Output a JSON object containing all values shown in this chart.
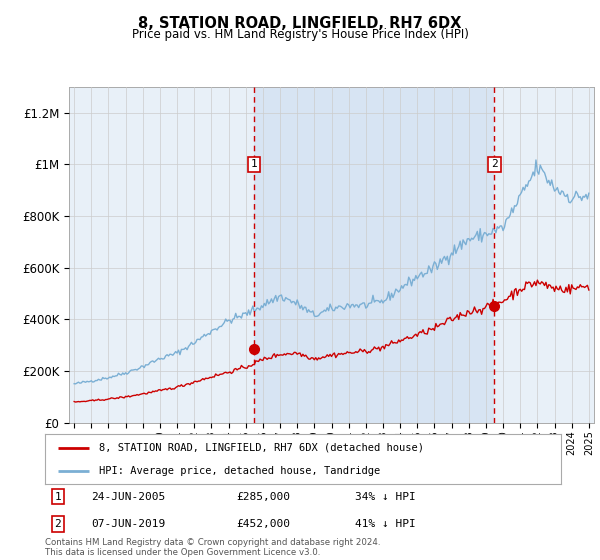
{
  "title": "8, STATION ROAD, LINGFIELD, RH7 6DX",
  "subtitle": "Price paid vs. HM Land Registry's House Price Index (HPI)",
  "footer": "Contains HM Land Registry data © Crown copyright and database right 2024.\nThis data is licensed under the Open Government Licence v3.0.",
  "legend_line1": "8, STATION ROAD, LINGFIELD, RH7 6DX (detached house)",
  "legend_line2": "HPI: Average price, detached house, Tandridge",
  "marker1_date": "24-JUN-2005",
  "marker1_price": "£285,000",
  "marker1_hpi": "34% ↓ HPI",
  "marker1_year": 2005.5,
  "marker1_price_val": 285000,
  "marker2_date": "07-JUN-2019",
  "marker2_price": "£452,000",
  "marker2_hpi": "41% ↓ HPI",
  "marker2_year": 2019.5,
  "marker2_price_val": 452000,
  "hpi_color": "#7bafd4",
  "price_color": "#cc0000",
  "dashed_line_color": "#cc0000",
  "shade_color": "#ccddf0",
  "background_color": "#ffffff",
  "plot_bg_color": "#e8f0f8",
  "grid_color": "#cccccc",
  "ylim_max": 1300000,
  "xlim_start": 1994.7,
  "xlim_end": 2025.3,
  "yticks": [
    0,
    200000,
    400000,
    600000,
    800000,
    1000000,
    1200000
  ],
  "ytick_labels": [
    "£0",
    "£200K",
    "£400K",
    "£600K",
    "£800K",
    "£1M",
    "£1.2M"
  ]
}
